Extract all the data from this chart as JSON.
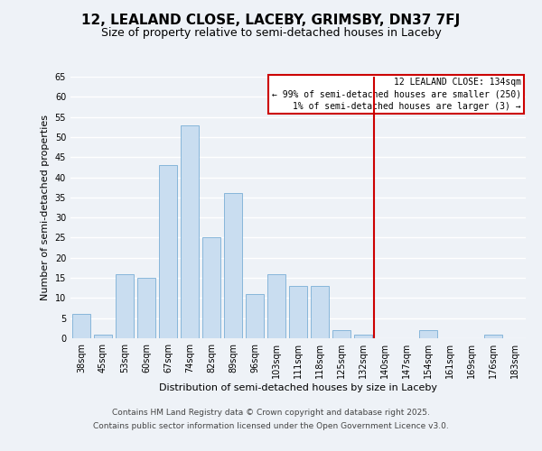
{
  "title": "12, LEALAND CLOSE, LACEBY, GRIMSBY, DN37 7FJ",
  "subtitle": "Size of property relative to semi-detached houses in Laceby",
  "xlabel": "Distribution of semi-detached houses by size in Laceby",
  "ylabel": "Number of semi-detached properties",
  "categories": [
    "38sqm",
    "45sqm",
    "53sqm",
    "60sqm",
    "67sqm",
    "74sqm",
    "82sqm",
    "89sqm",
    "96sqm",
    "103sqm",
    "111sqm",
    "118sqm",
    "125sqm",
    "132sqm",
    "140sqm",
    "147sqm",
    "154sqm",
    "161sqm",
    "169sqm",
    "176sqm",
    "183sqm"
  ],
  "values": [
    6,
    1,
    16,
    15,
    43,
    53,
    25,
    36,
    11,
    16,
    13,
    13,
    2,
    1,
    0,
    0,
    2,
    0,
    0,
    1,
    0
  ],
  "bar_color": "#c9ddf0",
  "bar_edge_color": "#7aaed6",
  "vline_color": "#cc0000",
  "vline_index": 13.5,
  "ylim": [
    0,
    65
  ],
  "yticks": [
    0,
    5,
    10,
    15,
    20,
    25,
    30,
    35,
    40,
    45,
    50,
    55,
    60,
    65
  ],
  "annotation_title": "12 LEALAND CLOSE: 134sqm",
  "annotation_line1": "← 99% of semi-detached houses are smaller (250)",
  "annotation_line2": "1% of semi-detached houses are larger (3) →",
  "annotation_box_color": "#ffffff",
  "annotation_box_edge": "#cc0000",
  "footer_line1": "Contains HM Land Registry data © Crown copyright and database right 2025.",
  "footer_line2": "Contains public sector information licensed under the Open Government Licence v3.0.",
  "background_color": "#eef2f7",
  "grid_color": "#ffffff",
  "title_fontsize": 11,
  "subtitle_fontsize": 9,
  "axis_label_fontsize": 8,
  "tick_fontsize": 7,
  "annotation_fontsize": 7,
  "footer_fontsize": 6.5
}
